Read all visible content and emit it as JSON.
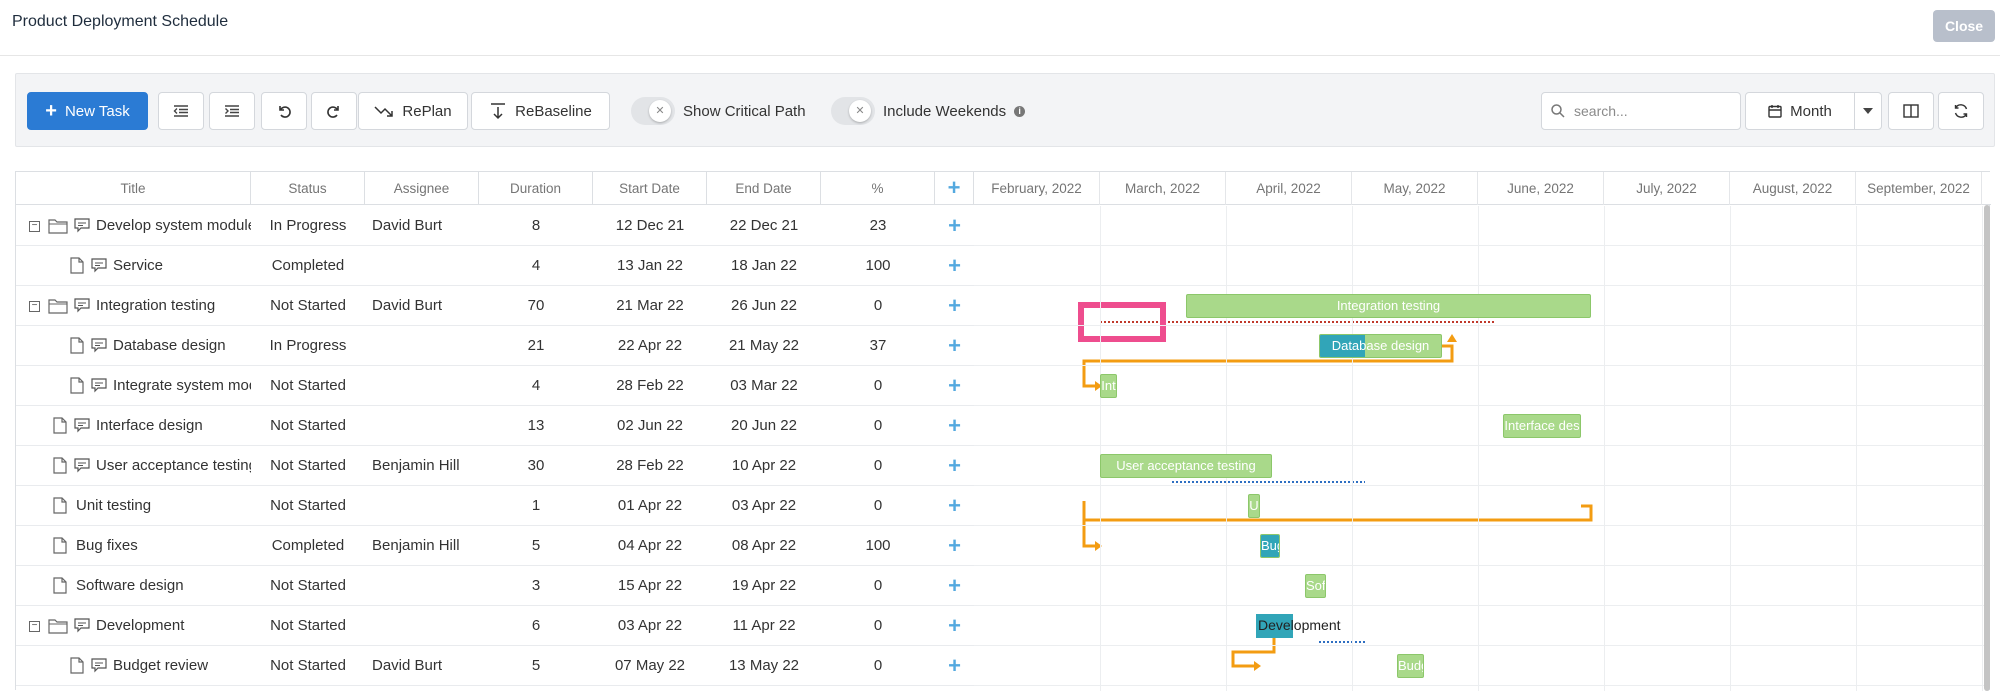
{
  "window": {
    "title": "Product Deployment Schedule",
    "close_label": "Close"
  },
  "toolbar": {
    "new_task_label": "New Task",
    "replan_label": "RePlan",
    "rebaseline_label": "ReBaseline",
    "critical_path_label": "Show Critical Path",
    "include_weekends_label": "Include Weekends",
    "search_placeholder": "search...",
    "view_mode_label": "Month"
  },
  "columns": {
    "title": "Title",
    "status": "Status",
    "assignee": "Assignee",
    "duration": "Duration",
    "start": "Start Date",
    "end": "End Date",
    "percent": "%"
  },
  "timeline_months": [
    "February, 2022",
    "March, 2022",
    "April, 2022",
    "May, 2022",
    "June, 2022",
    "July, 2022",
    "August, 2022",
    "September, 2022"
  ],
  "tasks": [
    {
      "title": "Develop system module",
      "status": "In Progress",
      "assignee": "David Burt",
      "duration": "8",
      "start": "12 Dec 21",
      "end": "22 Dec 21",
      "percent": "23",
      "type": "folder",
      "level": 0
    },
    {
      "title": "Service",
      "status": "Completed",
      "assignee": "",
      "duration": "4",
      "start": "13 Jan 22",
      "end": "18 Jan 22",
      "percent": "100",
      "type": "file-comment",
      "level": 1
    },
    {
      "title": "Integration testing",
      "status": "Not Started",
      "assignee": "David Burt",
      "duration": "70",
      "start": "21 Mar 22",
      "end": "26 Jun 22",
      "percent": "0",
      "type": "folder",
      "level": 0,
      "bar_label": "Integration testing"
    },
    {
      "title": "Database design",
      "status": "In Progress",
      "assignee": "",
      "duration": "21",
      "start": "22 Apr 22",
      "end": "21 May 22",
      "percent": "37",
      "type": "file-comment",
      "level": 1,
      "bar_label": "Database design"
    },
    {
      "title": "Integrate system modules",
      "status": "Not Started",
      "assignee": "",
      "duration": "4",
      "start": "28 Feb 22",
      "end": "03 Mar 22",
      "percent": "0",
      "type": "file-comment",
      "level": 1,
      "bar_label": "Int"
    },
    {
      "title": "Interface design",
      "status": "Not Started",
      "assignee": "",
      "duration": "13",
      "start": "02 Jun 22",
      "end": "20 Jun 22",
      "percent": "0",
      "type": "file-comment-top",
      "level": 0,
      "bar_label": "Interface des"
    },
    {
      "title": "User acceptance testing",
      "status": "Not Started",
      "assignee": "Benjamin Hill",
      "duration": "30",
      "start": "28 Feb 22",
      "end": "10 Apr 22",
      "percent": "0",
      "type": "file-comment-top",
      "level": 0,
      "bar_label": "User acceptance testing"
    },
    {
      "title": "Unit testing",
      "status": "Not Started",
      "assignee": "",
      "duration": "1",
      "start": "01 Apr 22",
      "end": "03 Apr 22",
      "percent": "0",
      "type": "file",
      "level": 0,
      "bar_label": "U"
    },
    {
      "title": "Bug fixes",
      "status": "Completed",
      "assignee": "Benjamin Hill",
      "duration": "5",
      "start": "04 Apr 22",
      "end": "08 Apr 22",
      "percent": "100",
      "type": "file",
      "level": 0,
      "bar_label": "Bug"
    },
    {
      "title": "Software design",
      "status": "Not Started",
      "assignee": "",
      "duration": "3",
      "start": "15 Apr 22",
      "end": "19 Apr 22",
      "percent": "0",
      "type": "file",
      "level": 0,
      "bar_label": "Sof"
    },
    {
      "title": "Development",
      "status": "Not Started",
      "assignee": "",
      "duration": "6",
      "start": "03 Apr 22",
      "end": "11 Apr 22",
      "percent": "0",
      "type": "folder",
      "level": 0,
      "bar_label": "Development"
    },
    {
      "title": "Budget review",
      "status": "Not Started",
      "assignee": "David Burt",
      "duration": "5",
      "start": "07 May 22",
      "end": "13 May 22",
      "percent": "0",
      "type": "file-comment",
      "level": 1,
      "bar_label": "Budg"
    }
  ],
  "colors": {
    "accent": "#2b7bd4",
    "bar": "#a9d98a",
    "progress": "#31a5b8",
    "dependency": "#f39c12",
    "critical_highlight": "#ee4d8e"
  }
}
